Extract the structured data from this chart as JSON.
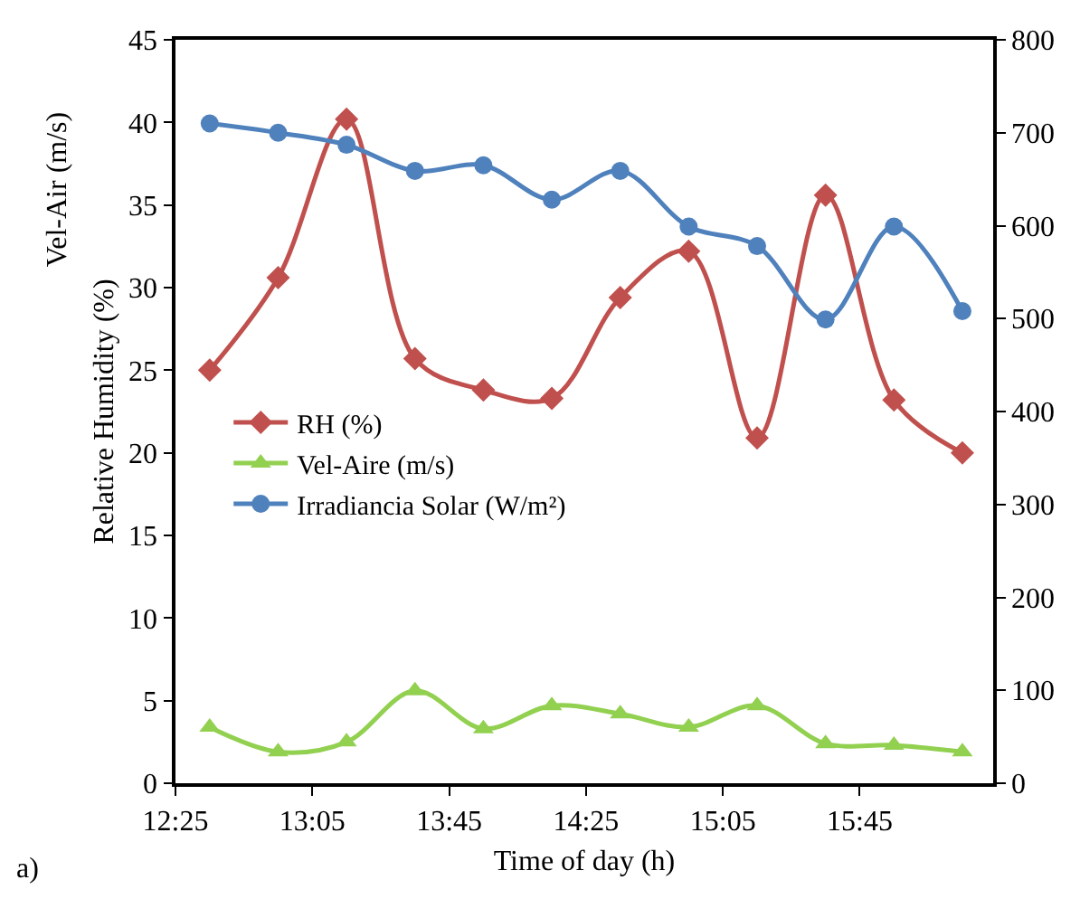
{
  "chart_data": {
    "type": "line",
    "xlabel": "Time of day (h)",
    "ylabel": "Relative Humidity (%)",
    "annotations": [
      "Vel-Air (m/s)",
      "a)"
    ],
    "x": [
      12.583333,
      12.916667,
      13.25,
      13.583333,
      13.916667,
      14.25,
      14.583333,
      14.916667,
      15.25,
      15.583333,
      15.916667,
      16.25
    ],
    "series": [
      {
        "name": "RH (%)",
        "color": "#c0504d",
        "marker": "diamond",
        "values": [
          25.0,
          30.6,
          40.2,
          25.7,
          23.8,
          23.3,
          29.4,
          32.2,
          20.9,
          35.6,
          23.2,
          20.0
        ]
      },
      {
        "name": "Vel-Aire (m/s)",
        "color": "#92d050",
        "marker": "triangle",
        "values": [
          3.4,
          1.9,
          2.5,
          5.6,
          3.3,
          4.7,
          4.2,
          3.4,
          4.7,
          2.4,
          2.3,
          1.9
        ]
      },
      {
        "name": "Irradiancia Solar (W/m²)",
        "color": "#4f81bd",
        "marker": "circle",
        "axis": "y2",
        "values": [
          710,
          700,
          687,
          659,
          665,
          628,
          659,
          599,
          578,
          499,
          599,
          508
        ]
      }
    ],
    "xlim": [
      12.416667,
      16.4
    ],
    "xticks": [
      {
        "value": 12.416667,
        "label": "12:25"
      },
      {
        "value": 13.083333,
        "label": "13:05"
      },
      {
        "value": 13.75,
        "label": "13:45"
      },
      {
        "value": 14.416667,
        "label": "14:25"
      },
      {
        "value": 15.083333,
        "label": "15:05"
      },
      {
        "value": 15.75,
        "label": "15:45"
      }
    ],
    "ylim": [
      0,
      45
    ],
    "yticks": [
      0,
      5,
      10,
      15,
      20,
      25,
      30,
      35,
      40,
      45
    ],
    "y2lim": [
      0,
      800
    ],
    "y2ticks": [
      0,
      100,
      200,
      300,
      400,
      500,
      600,
      700,
      800
    ],
    "legend": "left",
    "line_style": "solid"
  }
}
